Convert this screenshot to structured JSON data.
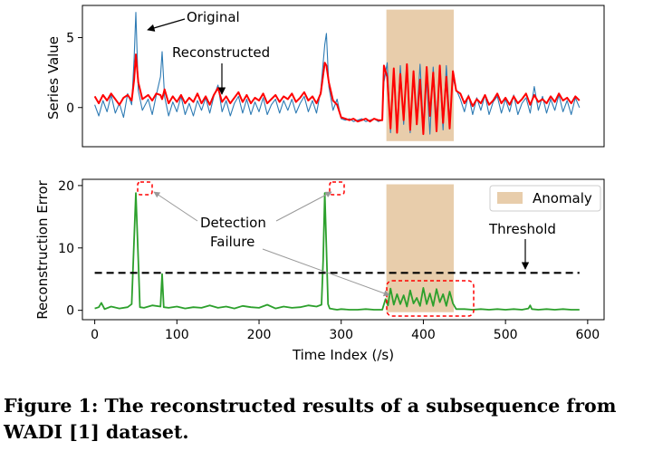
{
  "caption": "Figure 1: The reconstructed results of a subsequence from WADI [1] dataset.",
  "colors": {
    "original": "#2e7bb4",
    "reconstructed": "#ff0000",
    "error": "#2ca02c",
    "anomaly": "#deb887",
    "threshold": "#000000",
    "highlight_box": "#ff0000"
  },
  "chart_data": [
    {
      "type": "line",
      "ylabel": "Series Value",
      "xlim": [
        -15,
        620
      ],
      "ylim": [
        -2.8,
        7.3
      ],
      "yticks": [
        0,
        5
      ],
      "yticklabels": [
        "0",
        "5"
      ],
      "anomaly_span": [
        355,
        437
      ],
      "series": [
        {
          "name": "Original",
          "x": [
            0,
            5,
            10,
            15,
            20,
            25,
            30,
            35,
            40,
            45,
            48,
            50,
            53,
            58,
            65,
            70,
            75,
            80,
            82,
            85,
            90,
            95,
            100,
            105,
            110,
            115,
            120,
            125,
            130,
            135,
            140,
            145,
            150,
            155,
            160,
            165,
            170,
            175,
            180,
            185,
            190,
            195,
            200,
            205,
            210,
            215,
            220,
            225,
            230,
            235,
            240,
            245,
            250,
            255,
            260,
            265,
            270,
            275,
            280,
            282,
            285,
            290,
            295,
            300,
            305,
            310,
            315,
            320,
            325,
            330,
            335,
            340,
            345,
            350,
            352,
            356,
            360,
            364,
            368,
            372,
            376,
            380,
            384,
            388,
            392,
            396,
            400,
            404,
            408,
            412,
            416,
            420,
            424,
            428,
            432,
            436,
            440,
            445,
            450,
            455,
            460,
            465,
            470,
            475,
            480,
            485,
            490,
            495,
            500,
            505,
            510,
            515,
            520,
            525,
            530,
            535,
            540,
            545,
            550,
            555,
            560,
            565,
            570,
            575,
            580,
            585,
            590
          ],
          "y": [
            0.2,
            -0.6,
            0.5,
            -0.3,
            0.9,
            -0.4,
            0.3,
            -0.7,
            1.0,
            0.2,
            3.5,
            6.8,
            1.2,
            -0.2,
            0.6,
            -0.5,
            0.9,
            2.2,
            4.0,
            0.8,
            -0.6,
            0.4,
            -0.3,
            0.8,
            -0.5,
            0.3,
            -0.6,
            0.5,
            -0.2,
            0.7,
            -0.4,
            0.8,
            1.6,
            -0.3,
            0.5,
            -0.6,
            0.3,
            0.8,
            -0.4,
            0.6,
            -0.5,
            0.4,
            -0.3,
            0.7,
            -0.5,
            0.2,
            0.6,
            -0.4,
            0.5,
            -0.2,
            0.6,
            -0.4,
            0.3,
            0.8,
            -0.3,
            0.5,
            -0.4,
            1.2,
            4.5,
            5.3,
            1.5,
            -0.2,
            0.6,
            -0.8,
            -0.9,
            -0.8,
            -1.0,
            -0.9,
            -0.8,
            -1.0,
            -0.9,
            -0.8,
            -1.0,
            -0.9,
            1.8,
            3.2,
            -1.8,
            2.5,
            -1.5,
            3.0,
            -1.2,
            2.7,
            -1.8,
            2.2,
            -0.7,
            3.1,
            -1.4,
            2.0,
            -1.9,
            2.9,
            -0.8,
            2.4,
            -1.6,
            3.0,
            -1.0,
            2.1,
            1.3,
            0.6,
            -0.3,
            0.9,
            -0.5,
            0.7,
            -0.2,
            0.9,
            -0.5,
            0.4,
            0.8,
            -0.4,
            0.6,
            -0.3,
            0.9,
            -0.5,
            0.3,
            0.7,
            -0.4,
            1.5,
            -0.2,
            0.8,
            -0.4,
            0.6,
            -0.2,
            0.9,
            -0.3,
            0.5,
            -0.5,
            0.7,
            0.0
          ]
        },
        {
          "name": "Reconstructed",
          "x": [
            0,
            5,
            10,
            15,
            20,
            25,
            30,
            35,
            40,
            45,
            48,
            50,
            53,
            58,
            65,
            70,
            75,
            80,
            82,
            85,
            90,
            95,
            100,
            105,
            110,
            115,
            120,
            125,
            130,
            135,
            140,
            145,
            150,
            155,
            160,
            165,
            170,
            175,
            180,
            185,
            190,
            195,
            200,
            205,
            210,
            215,
            220,
            225,
            230,
            235,
            240,
            245,
            250,
            255,
            260,
            265,
            270,
            275,
            280,
            282,
            285,
            290,
            295,
            300,
            305,
            310,
            315,
            320,
            325,
            330,
            335,
            340,
            345,
            350,
            352,
            356,
            360,
            364,
            368,
            372,
            376,
            380,
            384,
            388,
            392,
            396,
            400,
            404,
            408,
            412,
            416,
            420,
            424,
            428,
            432,
            436,
            440,
            445,
            450,
            455,
            460,
            465,
            470,
            475,
            480,
            485,
            490,
            495,
            500,
            505,
            510,
            515,
            520,
            525,
            530,
            535,
            540,
            545,
            550,
            555,
            560,
            565,
            570,
            575,
            580,
            585,
            590
          ],
          "y": [
            0.8,
            0.3,
            0.9,
            0.5,
            1.0,
            0.6,
            0.2,
            0.7,
            0.9,
            0.5,
            2.0,
            3.8,
            1.8,
            0.6,
            0.9,
            0.5,
            1.0,
            0.9,
            0.6,
            1.3,
            0.3,
            0.8,
            0.4,
            0.9,
            0.3,
            0.7,
            0.4,
            1.0,
            0.3,
            0.8,
            0.2,
            0.9,
            1.4,
            0.4,
            0.8,
            0.3,
            0.7,
            1.1,
            0.4,
            0.9,
            0.3,
            0.7,
            0.5,
            1.0,
            0.3,
            0.6,
            0.9,
            0.4,
            0.8,
            0.6,
            1.0,
            0.4,
            0.7,
            1.1,
            0.5,
            0.8,
            0.3,
            1.0,
            3.2,
            3.0,
            1.8,
            0.5,
            0.2,
            -0.7,
            -0.8,
            -0.9,
            -0.8,
            -1.0,
            -0.9,
            -0.8,
            -1.0,
            -0.8,
            -0.9,
            -0.9,
            3.0,
            2.2,
            -1.5,
            2.8,
            -1.8,
            2.4,
            -0.9,
            3.1,
            -1.6,
            2.6,
            -1.2,
            2.0,
            -1.9,
            2.9,
            -0.6,
            2.5,
            -1.7,
            3.0,
            -1.1,
            2.2,
            -1.5,
            2.6,
            1.2,
            1.0,
            0.3,
            0.8,
            0.1,
            0.6,
            0.3,
            0.9,
            0.2,
            0.5,
            1.0,
            0.3,
            0.7,
            0.2,
            0.8,
            0.3,
            0.6,
            1.0,
            0.2,
            0.9,
            0.4,
            0.6,
            0.3,
            0.8,
            0.4,
            1.0,
            0.5,
            0.7,
            0.3,
            0.8,
            0.5
          ]
        }
      ],
      "annotations": [
        {
          "text": "Original"
        },
        {
          "text": "Reconstructed"
        }
      ]
    },
    {
      "type": "line",
      "xlabel": "Time Index (/s)",
      "ylabel": "Reconstruction Error",
      "xlim": [
        -15,
        620
      ],
      "ylim": [
        -1.5,
        21
      ],
      "xticks": [
        0,
        100,
        200,
        300,
        400,
        500,
        600
      ],
      "xticklabels": [
        "0",
        "100",
        "200",
        "300",
        "400",
        "500",
        "600"
      ],
      "yticks": [
        0,
        10,
        20
      ],
      "yticklabels": [
        "0",
        "10",
        "20"
      ],
      "threshold": 6.0,
      "anomaly_span": [
        355,
        437
      ],
      "legend": {
        "entries": [
          "Anomaly"
        ],
        "position": "top-right"
      },
      "series": [
        {
          "x": [
            0,
            5,
            8,
            12,
            20,
            30,
            40,
            45,
            47,
            50,
            53,
            55,
            60,
            70,
            80,
            82,
            84,
            90,
            100,
            110,
            120,
            130,
            140,
            150,
            160,
            170,
            180,
            190,
            200,
            210,
            220,
            230,
            240,
            250,
            260,
            270,
            276,
            278,
            280,
            282,
            284,
            286,
            290,
            295,
            300,
            310,
            320,
            330,
            340,
            350,
            354,
            357,
            360,
            364,
            368,
            372,
            376,
            380,
            384,
            388,
            392,
            396,
            400,
            404,
            408,
            412,
            416,
            420,
            424,
            428,
            432,
            436,
            440,
            450,
            460,
            470,
            480,
            490,
            500,
            510,
            520,
            528,
            530,
            532,
            540,
            550,
            560,
            570,
            580,
            590
          ],
          "y": [
            0.3,
            0.5,
            1.2,
            0.2,
            0.6,
            0.3,
            0.5,
            1.0,
            8.0,
            18.8,
            8.0,
            0.5,
            0.4,
            0.8,
            0.6,
            5.8,
            0.5,
            0.4,
            0.6,
            0.3,
            0.5,
            0.4,
            0.8,
            0.4,
            0.6,
            0.3,
            0.7,
            0.5,
            0.4,
            0.9,
            0.3,
            0.6,
            0.4,
            0.5,
            0.8,
            0.6,
            0.9,
            8.0,
            18.8,
            10.0,
            1.0,
            0.3,
            0.2,
            0.1,
            0.2,
            0.1,
            0.1,
            0.2,
            0.1,
            0.1,
            1.8,
            0.8,
            3.5,
            0.9,
            2.6,
            1.0,
            2.4,
            0.6,
            3.2,
            1.1,
            2.0,
            0.7,
            3.6,
            1.0,
            2.7,
            0.7,
            3.4,
            1.3,
            2.6,
            0.7,
            3.0,
            1.1,
            0.2,
            0.2,
            0.1,
            0.2,
            0.1,
            0.2,
            0.1,
            0.2,
            0.1,
            0.3,
            0.8,
            0.2,
            0.1,
            0.2,
            0.1,
            0.2,
            0.1,
            0.1
          ]
        }
      ],
      "annotations": [
        {
          "text": "Detection"
        },
        {
          "text": "Failure"
        },
        {
          "text": "Threshold"
        }
      ]
    }
  ]
}
